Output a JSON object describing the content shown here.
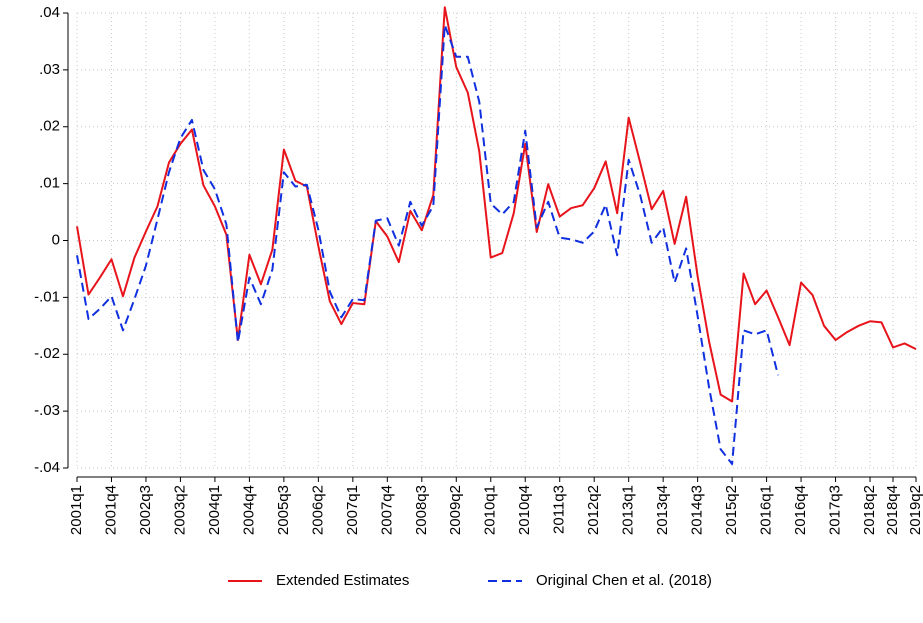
{
  "chart_data": {
    "type": "line",
    "categories": [
      "2001q1",
      null,
      null,
      "2001q4",
      null,
      null,
      "2002q3",
      null,
      null,
      "2003q2",
      null,
      null,
      "2004q1",
      null,
      null,
      "2004q4",
      null,
      null,
      "2005q3",
      null,
      null,
      "2006q2",
      null,
      null,
      "2007q1",
      null,
      null,
      "2007q4",
      null,
      null,
      "2008q3",
      null,
      null,
      "2009q2",
      null,
      null,
      "2010q1",
      null,
      null,
      "2010q4",
      null,
      null,
      "2011q3",
      null,
      null,
      "2012q2",
      null,
      null,
      "2013q1",
      null,
      null,
      "2013q4",
      null,
      null,
      "2014q3",
      null,
      null,
      "2015q2",
      null,
      null,
      "2016q1",
      null,
      null,
      "2016q4",
      null,
      null,
      "2017q3",
      null,
      null,
      "2018q2",
      null,
      "2018q4",
      null,
      "2019q2"
    ],
    "series": [
      {
        "name": "Extended Estimates",
        "color": "#e8141c",
        "dash": false,
        "values": [
          0.0025,
          -0.0095,
          -0.0065,
          -0.0033,
          -0.0098,
          -0.003,
          0.0016,
          0.006,
          0.0137,
          0.017,
          0.0195,
          0.0097,
          0.006,
          0.001,
          -0.0175,
          -0.0025,
          -0.0077,
          -0.0016,
          0.016,
          0.0105,
          0.0095,
          -0.001,
          -0.0107,
          -0.0147,
          -0.011,
          -0.0112,
          0.0034,
          0.0007,
          -0.0038,
          0.0052,
          0.0018,
          0.008,
          0.041,
          0.0305,
          0.026,
          0.0157,
          -0.003,
          -0.0022,
          0.0048,
          0.017,
          0.0015,
          0.0099,
          0.0042,
          0.0057,
          0.0062,
          0.0092,
          0.0139,
          0.0048,
          0.0216,
          0.0137,
          0.0055,
          0.0087,
          -0.0006,
          0.0077,
          -0.0063,
          -0.0178,
          -0.0271,
          -0.0283,
          -0.0058,
          -0.0112,
          -0.0088,
          -0.0135,
          -0.0184,
          -0.0074,
          -0.0096,
          -0.015,
          -0.0175,
          -0.0161,
          -0.015,
          -0.0142,
          -0.0144,
          -0.0188,
          -0.0181,
          -0.0191
        ]
      },
      {
        "name": "Original Chen et al. (2018)",
        "color": "#1030e0",
        "dash": true,
        "values": [
          -0.0026,
          -0.0138,
          -0.012,
          -0.0098,
          -0.0158,
          -0.0103,
          -0.0044,
          0.0037,
          0.012,
          0.018,
          0.0212,
          0.0124,
          0.009,
          0.0028,
          -0.0179,
          -0.0065,
          -0.0112,
          -0.0051,
          0.012,
          0.0095,
          0.0098,
          0.0019,
          -0.009,
          -0.0135,
          -0.0103,
          -0.0105,
          0.0035,
          0.0039,
          -0.0009,
          0.0068,
          0.0026,
          0.0061,
          0.0379,
          0.0323,
          0.0323,
          0.0244,
          0.0065,
          0.0046,
          0.0068,
          0.0193,
          0.0023,
          0.0068,
          0.0005,
          0.0002,
          -0.0004,
          0.0016,
          0.0063,
          -0.0026,
          0.0142,
          0.008,
          -0.0004,
          0.0023,
          -0.0074,
          -0.0014,
          -0.0133,
          -0.0259,
          -0.0367,
          -0.0393,
          -0.0158,
          -0.0165,
          -0.0158,
          -0.0237,
          null,
          null,
          null,
          null,
          null,
          null,
          null,
          null,
          null,
          null,
          null,
          null
        ]
      }
    ],
    "ylim": [
      -0.04,
      0.04
    ],
    "yticks": [
      {
        "value": -0.04,
        "label": "-.04"
      },
      {
        "value": -0.03,
        "label": "-.03"
      },
      {
        "value": -0.02,
        "label": "-.02"
      },
      {
        "value": -0.01,
        "label": "-.01"
      },
      0,
      {
        "value": 0.01,
        "label": ".01"
      },
      {
        "value": 0.02,
        "label": ".02"
      },
      {
        "value": 0.03,
        "label": ".03"
      },
      {
        "value": 0.04,
        "label": ".04"
      }
    ],
    "grid": true,
    "legend": "bottom"
  }
}
